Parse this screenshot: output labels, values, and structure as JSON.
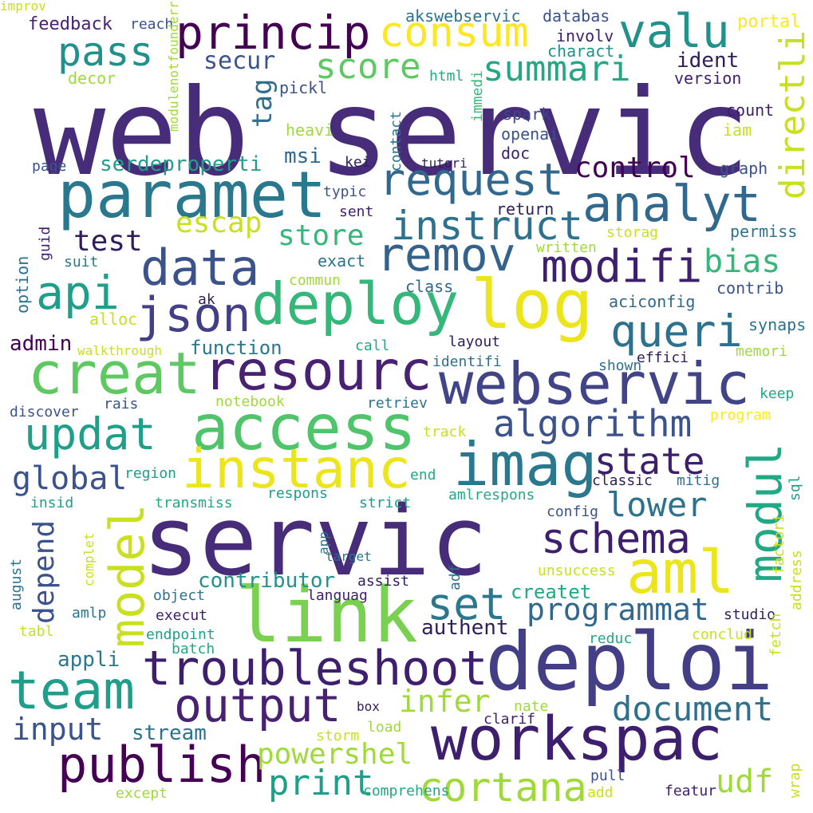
{
  "words": [
    {
      "text": "web",
      "color": "#472c7a",
      "vertical": false
    },
    {
      "text": "servic",
      "color": "#472c7a",
      "vertical": false
    },
    {
      "text": "servic",
      "color": "#472c7a",
      "vertical": false
    },
    {
      "text": "deploi",
      "color": "#433e85",
      "vertical": false
    },
    {
      "text": "paramet",
      "color": "#2a788e",
      "vertical": false
    },
    {
      "text": "access",
      "color": "#50c46a",
      "vertical": false
    },
    {
      "text": "link",
      "color": "#7ad151",
      "vertical": false
    },
    {
      "text": "webservic",
      "color": "#414487",
      "vertical": false
    },
    {
      "text": "workspac",
      "color": "#3e1f6e",
      "vertical": false
    },
    {
      "text": "deploy",
      "color": "#35b779",
      "vertical": false
    },
    {
      "text": "log",
      "color": "#ede51b",
      "vertical": false
    },
    {
      "text": "resourc",
      "color": "#482173",
      "vertical": false
    },
    {
      "text": "creat",
      "color": "#5ec962",
      "vertical": false
    },
    {
      "text": "imag",
      "color": "#2a788e",
      "vertical": false
    },
    {
      "text": "aml",
      "color": "#ede51b",
      "vertical": false
    },
    {
      "text": "instanc",
      "color": "#ede51b",
      "vertical": false
    },
    {
      "text": "troubleshoot",
      "color": "#3e1f6e",
      "vertical": false
    },
    {
      "text": "princip",
      "color": "#440154",
      "vertical": false
    },
    {
      "text": "consum",
      "color": "#fde725",
      "vertical": false
    },
    {
      "text": "valu",
      "color": "#21918c",
      "vertical": false
    },
    {
      "text": "pass",
      "color": "#21918c",
      "vertical": false
    },
    {
      "text": "score",
      "color": "#5ec962",
      "vertical": false
    },
    {
      "text": "summari",
      "color": "#22a884",
      "vertical": false
    },
    {
      "text": "request",
      "color": "#31688e",
      "vertical": false
    },
    {
      "text": "analyt",
      "color": "#31688e",
      "vertical": false
    },
    {
      "text": "instruct",
      "color": "#2c728e",
      "vertical": false
    },
    {
      "text": "remov",
      "color": "#33638d",
      "vertical": false
    },
    {
      "text": "modifi",
      "color": "#3e1f6e",
      "vertical": false
    },
    {
      "text": "data",
      "color": "#3b528b",
      "vertical": false
    },
    {
      "text": "json",
      "color": "#433e85",
      "vertical": false
    },
    {
      "text": "api",
      "color": "#1f9e89",
      "vertical": false
    },
    {
      "text": "queri",
      "color": "#2c728e",
      "vertical": false
    },
    {
      "text": "updat",
      "color": "#1f9e89",
      "vertical": false
    },
    {
      "text": "algorithm",
      "color": "#3b528b",
      "vertical": false
    },
    {
      "text": "state",
      "color": "#3e1f6e",
      "vertical": false
    },
    {
      "text": "schema",
      "color": "#3e1f6e",
      "vertical": false
    },
    {
      "text": "lower",
      "color": "#2c728e",
      "vertical": false
    },
    {
      "text": "set",
      "color": "#2a788e",
      "vertical": false
    },
    {
      "text": "programmat",
      "color": "#31688e",
      "vertical": false
    },
    {
      "text": "team",
      "color": "#1f9e89",
      "vertical": false
    },
    {
      "text": "output",
      "color": "#482173",
      "vertical": false
    },
    {
      "text": "document",
      "color": "#2c728e",
      "vertical": false
    },
    {
      "text": "publish",
      "color": "#440154",
      "vertical": false
    },
    {
      "text": "input",
      "color": "#3b528b",
      "vertical": false
    },
    {
      "text": "cortana",
      "color": "#a0da39",
      "vertical": false
    },
    {
      "text": "powershel",
      "color": "#a0da39",
      "vertical": false
    },
    {
      "text": "print",
      "color": "#1f9e89",
      "vertical": false
    },
    {
      "text": "infer",
      "color": "#a0da39",
      "vertical": false
    },
    {
      "text": "udf",
      "color": "#a0da39",
      "vertical": false
    },
    {
      "text": "global",
      "color": "#3b528b",
      "vertical": false
    },
    {
      "text": "test",
      "color": "#2e1e5b",
      "vertical": false
    },
    {
      "text": "escap",
      "color": "#c8e020",
      "vertical": false
    },
    {
      "text": "store",
      "color": "#35b779",
      "vertical": false
    },
    {
      "text": "control",
      "color": "#440154",
      "vertical": false
    },
    {
      "text": "bias",
      "color": "#35b779",
      "vertical": false
    },
    {
      "text": "secur",
      "color": "#3b528b",
      "vertical": false
    },
    {
      "text": "ident",
      "color": "#2e1e5b",
      "vertical": false
    },
    {
      "text": "contributor",
      "color": "#21918c",
      "vertical": false
    },
    {
      "text": "createt",
      "color": "#22a884",
      "vertical": false
    },
    {
      "text": "authent",
      "color": "#2e1e5b",
      "vertical": false
    },
    {
      "text": "appli",
      "color": "#2a788e",
      "vertical": false
    },
    {
      "text": "stream",
      "color": "#2c728e",
      "vertical": false
    },
    {
      "text": "function",
      "color": "#2a788e",
      "vertical": false
    },
    {
      "text": "admin",
      "color": "#440154",
      "vertical": false
    },
    {
      "text": "msi",
      "color": "#31688e",
      "vertical": false
    },
    {
      "text": "serdeproperti",
      "color": "#1f9e89",
      "vertical": false
    },
    {
      "text": "model",
      "color": "#c8e020",
      "vertical": true
    },
    {
      "text": "modul",
      "color": "#22a884",
      "vertical": true
    },
    {
      "text": "directli",
      "color": "#c8e020",
      "vertical": true
    },
    {
      "text": "depend",
      "color": "#3b528b",
      "vertical": true
    },
    {
      "text": "tag",
      "color": "#2e6e8e",
      "vertical": true
    },
    {
      "text": "feedback",
      "color": "#482173",
      "vertical": false
    },
    {
      "text": "reach",
      "color": "#3b528b",
      "vertical": false
    },
    {
      "text": "akswebservic",
      "color": "#2c728e",
      "vertical": false
    },
    {
      "text": "databas",
      "color": "#3b528b",
      "vertical": false
    },
    {
      "text": "involv",
      "color": "#3e1f6e",
      "vertical": false
    },
    {
      "text": "charact",
      "color": "#21918c",
      "vertical": false
    },
    {
      "text": "portal",
      "color": "#fde725",
      "vertical": false
    },
    {
      "text": "decor",
      "color": "#a0da39",
      "vertical": false
    },
    {
      "text": "html",
      "color": "#22a884",
      "vertical": false
    },
    {
      "text": "pickl",
      "color": "#3b528b",
      "vertical": false
    },
    {
      "text": "version",
      "color": "#3e1f6e",
      "vertical": false
    },
    {
      "text": "spark",
      "color": "#414487",
      "vertical": false
    },
    {
      "text": "openai",
      "color": "#3b528b",
      "vertical": false
    },
    {
      "text": "doc",
      "color": "#3e1f6e",
      "vertical": false
    },
    {
      "text": "count",
      "color": "#3e1f6e",
      "vertical": false
    },
    {
      "text": "iam",
      "color": "#c8e020",
      "vertical": false
    },
    {
      "text": "heavi",
      "color": "#a0da39",
      "vertical": false
    },
    {
      "text": "page",
      "color": "#3b528b",
      "vertical": false
    },
    {
      "text": "kei",
      "color": "#2e1e5b",
      "vertical": false
    },
    {
      "text": "tutori",
      "color": "#2e1e5b",
      "vertical": false
    },
    {
      "text": "graph",
      "color": "#3b528b",
      "vertical": false
    },
    {
      "text": "typic",
      "color": "#3b528b",
      "vertical": false
    },
    {
      "text": "sent",
      "color": "#3e1f6e",
      "vertical": false
    },
    {
      "text": "return",
      "color": "#2e1e5b",
      "vertical": false
    },
    {
      "text": "storag",
      "color": "#c8e020",
      "vertical": false
    },
    {
      "text": "permiss",
      "color": "#2c728e",
      "vertical": false
    },
    {
      "text": "suit",
      "color": "#2a788e",
      "vertical": false
    },
    {
      "text": "exact",
      "color": "#2c728e",
      "vertical": false
    },
    {
      "text": "written",
      "color": "#a0da39",
      "vertical": false
    },
    {
      "text": "commun",
      "color": "#a0da39",
      "vertical": false
    },
    {
      "text": "class",
      "color": "#31688e",
      "vertical": false
    },
    {
      "text": "contrib",
      "color": "#3b528b",
      "vertical": false
    },
    {
      "text": "ak",
      "color": "#2e1e5b",
      "vertical": false
    },
    {
      "text": "aciconfig",
      "color": "#31688e",
      "vertical": false
    },
    {
      "text": "alloc",
      "color": "#c8e020",
      "vertical": false
    },
    {
      "text": "synaps",
      "color": "#2c728e",
      "vertical": false
    },
    {
      "text": "walkthrough",
      "color": "#c8e020",
      "vertical": false
    },
    {
      "text": "call",
      "color": "#22a884",
      "vertical": false
    },
    {
      "text": "layout",
      "color": "#2e1e5b",
      "vertical": false
    },
    {
      "text": "effici",
      "color": "#2e1e5b",
      "vertical": false
    },
    {
      "text": "memori",
      "color": "#a0da39",
      "vertical": false
    },
    {
      "text": "identifi",
      "color": "#2c728e",
      "vertical": false
    },
    {
      "text": "shown",
      "color": "#2c728e",
      "vertical": false
    },
    {
      "text": "notebook",
      "color": "#a0da39",
      "vertical": false
    },
    {
      "text": "keep",
      "color": "#22a884",
      "vertical": false
    },
    {
      "text": "discover",
      "color": "#3b528b",
      "vertical": false
    },
    {
      "text": "rais",
      "color": "#3b528b",
      "vertical": false
    },
    {
      "text": "retriev",
      "color": "#2c728e",
      "vertical": false
    },
    {
      "text": "program",
      "color": "#fde725",
      "vertical": false
    },
    {
      "text": "track",
      "color": "#c8e020",
      "vertical": false
    },
    {
      "text": "region",
      "color": "#1f9e89",
      "vertical": false
    },
    {
      "text": "end",
      "color": "#22a884",
      "vertical": false
    },
    {
      "text": "classic",
      "color": "#2e1e5b",
      "vertical": false
    },
    {
      "text": "mitig",
      "color": "#2c728e",
      "vertical": false
    },
    {
      "text": "insid",
      "color": "#1f9e89",
      "vertical": false
    },
    {
      "text": "transmiss",
      "color": "#22a884",
      "vertical": false
    },
    {
      "text": "respons",
      "color": "#1f9e89",
      "vertical": false
    },
    {
      "text": "strict",
      "color": "#1f9e89",
      "vertical": false
    },
    {
      "text": "amlrespons",
      "color": "#22a884",
      "vertical": false
    },
    {
      "text": "config",
      "color": "#3b528b",
      "vertical": false
    },
    {
      "text": "target",
      "color": "#2c728e",
      "vertical": false
    },
    {
      "text": "assist",
      "color": "#2e1e5b",
      "vertical": false
    },
    {
      "text": "unsuccess",
      "color": "#c8e020",
      "vertical": false
    },
    {
      "text": "object",
      "color": "#2c728e",
      "vertical": false
    },
    {
      "text": "languag",
      "color": "#3e1f6e",
      "vertical": false
    },
    {
      "text": "execut",
      "color": "#3e1f6e",
      "vertical": false
    },
    {
      "text": "studio",
      "color": "#2e1e5b",
      "vertical": false
    },
    {
      "text": "amlp",
      "color": "#2c728e",
      "vertical": false
    },
    {
      "text": "tabl",
      "color": "#c8e020",
      "vertical": false
    },
    {
      "text": "endpoint",
      "color": "#1f9e89",
      "vertical": false
    },
    {
      "text": "conclud",
      "color": "#c8e020",
      "vertical": false
    },
    {
      "text": "reduc",
      "color": "#22a884",
      "vertical": false
    },
    {
      "text": "batch",
      "color": "#22a884",
      "vertical": false
    },
    {
      "text": "box",
      "color": "#2e1e5b",
      "vertical": false
    },
    {
      "text": "nate",
      "color": "#a0da39",
      "vertical": false
    },
    {
      "text": "clarif",
      "color": "#3e1f6e",
      "vertical": false
    },
    {
      "text": "storm",
      "color": "#c8e020",
      "vertical": false
    },
    {
      "text": "load",
      "color": "#a0da39",
      "vertical": false
    },
    {
      "text": "except",
      "color": "#a0da39",
      "vertical": false
    },
    {
      "text": "comprehens",
      "color": "#22a884",
      "vertical": false
    },
    {
      "text": "pull",
      "color": "#3b528b",
      "vertical": false
    },
    {
      "text": "add",
      "color": "#c8e020",
      "vertical": false
    },
    {
      "text": "featur",
      "color": "#3e1f6e",
      "vertical": false
    },
    {
      "text": "guid",
      "color": "#3e1f6e",
      "vertical": false
    },
    {
      "text": "option",
      "color": "#2c728e",
      "vertical": true
    },
    {
      "text": "modulenotfounderror",
      "color": "#a0da39",
      "vertical": true
    },
    {
      "text": "contact",
      "color": "#2c728e",
      "vertical": true
    },
    {
      "text": "immedi",
      "color": "#35b779",
      "vertical": true
    },
    {
      "text": "sql",
      "color": "#1f9e89",
      "vertical": true
    },
    {
      "text": "address",
      "color": "#c8e020",
      "vertical": true
    },
    {
      "text": "factori",
      "color": "#c8e020",
      "vertical": true
    },
    {
      "text": "august",
      "color": "#2c728e",
      "vertical": true
    },
    {
      "text": "complet",
      "color": "#c8e020",
      "vertical": true
    },
    {
      "text": "app",
      "color": "#2c728e",
      "vertical": true
    },
    {
      "text": "adf",
      "color": "#2c728e",
      "vertical": true
    },
    {
      "text": "fetch",
      "color": "#c8e020",
      "vertical": true
    },
    {
      "text": "wrap",
      "color": "#c8e020",
      "vertical": true
    },
    {
      "text": "improv",
      "color": "#c8e020",
      "vertical": true
    }
  ]
}
